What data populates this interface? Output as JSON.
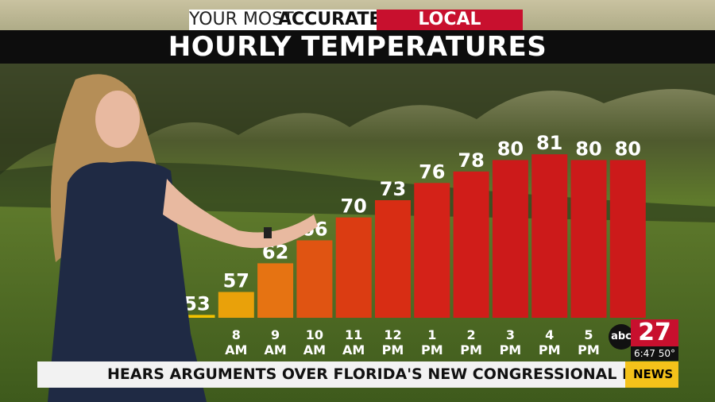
{
  "header": {
    "tagline": "YOUR MOST",
    "tagline_bold": "ACCURATE",
    "badge": "LOCAL FORECAST"
  },
  "chart_data": {
    "type": "bar",
    "title": "HOURLY TEMPERATURES",
    "categories": [
      null,
      "8 AM",
      "9 AM",
      "10 AM",
      "11 AM",
      "12 PM",
      "1 PM",
      "2 PM",
      "3 PM",
      "4 PM",
      "5 PM",
      null
    ],
    "values": [
      53,
      57,
      62,
      66,
      70,
      73,
      76,
      78,
      80,
      81,
      80,
      80
    ],
    "colors": [
      "#f2c200",
      "#e9a10a",
      "#e67312",
      "#e05412",
      "#db3c12",
      "#d82d14",
      "#d42218",
      "#d01d19",
      "#cc1a1a",
      "#cc1a1a",
      "#cc1a1a",
      "#cc1a1a"
    ],
    "ylim": [
      52.5,
      82
    ]
  },
  "logo": {
    "network": "abc",
    "channel": "27",
    "time": "6:47",
    "temp": "50°"
  },
  "ticker": {
    "text": "HEARS ARGUMENTS OVER FLORIDA'S NEW CONGRESSIONAL MAP IN GERRYMANDER S",
    "label": "NEWS"
  }
}
